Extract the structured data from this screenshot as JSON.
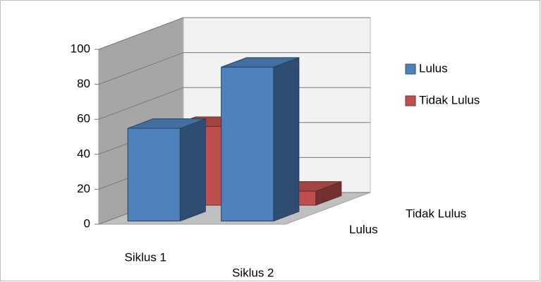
{
  "chart_data": {
    "type": "bar3d",
    "categories": [
      "Siklus 1",
      "Siklus 2"
    ],
    "series": [
      {
        "name": "Lulus",
        "color": "#4f81bd",
        "values": [
          53,
          88
        ]
      },
      {
        "name": "Tidak Lulus",
        "color": "#c0504d",
        "values": [
          45,
          8
        ]
      }
    ],
    "ylim": [
      0,
      100
    ],
    "yticks": [
      0,
      20,
      40,
      60,
      80,
      100
    ],
    "grid": true
  }
}
